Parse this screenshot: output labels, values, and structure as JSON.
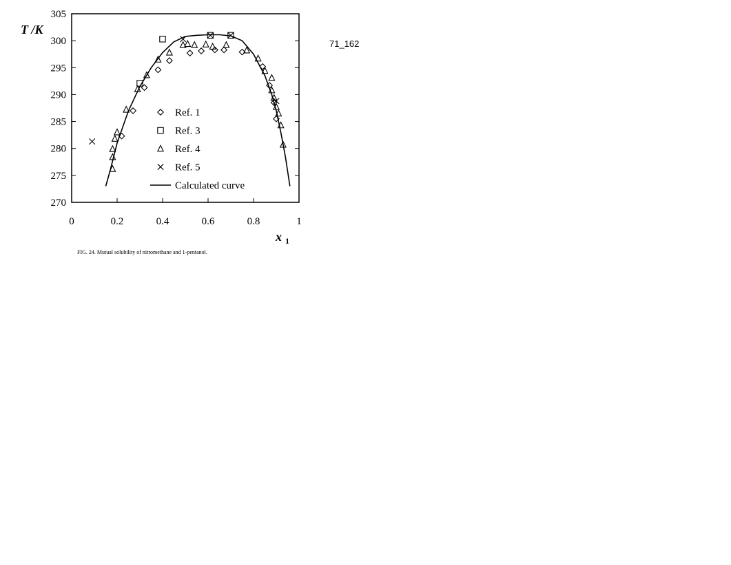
{
  "page_label": "71_162",
  "caption": "FIG. 24. Mutual solubility of nitromethane and 1-pentanol.",
  "chart_data": {
    "type": "scatter",
    "title": "",
    "xlabel": "x",
    "xlabel_sub": "1",
    "ylabel": "T /K",
    "xlim": [
      0,
      1
    ],
    "ylim": [
      270,
      305
    ],
    "xticks": [
      "0",
      "0.2",
      "0.4",
      "0.6",
      "0.8",
      "1"
    ],
    "xtick_values": [
      0,
      0.2,
      0.4,
      0.6,
      0.8,
      1
    ],
    "yticks": [
      "270",
      "275",
      "280",
      "285",
      "290",
      "295",
      "300",
      "305"
    ],
    "ytick_values": [
      270,
      275,
      280,
      285,
      290,
      295,
      300,
      305
    ],
    "grid": false,
    "legend_position": "center-left",
    "series": [
      {
        "name": "Ref. 1",
        "marker": "diamond",
        "points": [
          [
            0.22,
            282.3
          ],
          [
            0.27,
            287.0
          ],
          [
            0.32,
            291.3
          ],
          [
            0.38,
            294.6
          ],
          [
            0.43,
            296.3
          ],
          [
            0.52,
            297.7
          ],
          [
            0.57,
            298.1
          ],
          [
            0.63,
            298.3
          ],
          [
            0.67,
            298.3
          ],
          [
            0.75,
            297.9
          ],
          [
            0.84,
            295.2
          ],
          [
            0.87,
            291.7
          ],
          [
            0.89,
            288.5
          ],
          [
            0.9,
            285.5
          ]
        ]
      },
      {
        "name": "Ref. 3",
        "marker": "square",
        "points": [
          [
            0.3,
            292.1
          ],
          [
            0.4,
            300.3
          ],
          [
            0.61,
            301.0
          ],
          [
            0.7,
            301.0
          ]
        ]
      },
      {
        "name": "Ref. 4",
        "marker": "triangle",
        "points": [
          [
            0.18,
            276.2
          ],
          [
            0.18,
            278.4
          ],
          [
            0.18,
            279.9
          ],
          [
            0.19,
            281.8
          ],
          [
            0.2,
            283.0
          ],
          [
            0.24,
            287.2
          ],
          [
            0.29,
            291.0
          ],
          [
            0.33,
            293.6
          ],
          [
            0.38,
            296.5
          ],
          [
            0.43,
            297.8
          ],
          [
            0.49,
            299.2
          ],
          [
            0.51,
            299.4
          ],
          [
            0.54,
            299.2
          ],
          [
            0.59,
            299.3
          ],
          [
            0.62,
            298.9
          ],
          [
            0.68,
            299.2
          ],
          [
            0.77,
            298.2
          ],
          [
            0.82,
            296.7
          ],
          [
            0.85,
            294.4
          ],
          [
            0.88,
            293.1
          ],
          [
            0.88,
            290.8
          ],
          [
            0.89,
            289.4
          ],
          [
            0.9,
            287.7
          ],
          [
            0.91,
            286.5
          ],
          [
            0.92,
            284.3
          ],
          [
            0.93,
            280.7
          ]
        ]
      },
      {
        "name": "Ref. 5",
        "marker": "cross",
        "points": [
          [
            0.09,
            281.3
          ],
          [
            0.49,
            300.3
          ],
          [
            0.61,
            301.0
          ],
          [
            0.7,
            301.0
          ],
          [
            0.9,
            288.8
          ]
        ]
      },
      {
        "name": "Calculated curve",
        "marker": "line",
        "points": [
          [
            0.15,
            273.0
          ],
          [
            0.17,
            276.0
          ],
          [
            0.2,
            281.0
          ],
          [
            0.25,
            287.0
          ],
          [
            0.3,
            291.5
          ],
          [
            0.35,
            295.0
          ],
          [
            0.4,
            297.8
          ],
          [
            0.45,
            299.8
          ],
          [
            0.5,
            300.8
          ],
          [
            0.55,
            301.0
          ],
          [
            0.6,
            301.1
          ],
          [
            0.65,
            301.1
          ],
          [
            0.7,
            300.9
          ],
          [
            0.75,
            300.0
          ],
          [
            0.8,
            297.5
          ],
          [
            0.85,
            293.5
          ],
          [
            0.88,
            290.0
          ],
          [
            0.9,
            287.0
          ],
          [
            0.92,
            283.0
          ],
          [
            0.94,
            278.5
          ],
          [
            0.96,
            273.0
          ]
        ]
      }
    ]
  }
}
